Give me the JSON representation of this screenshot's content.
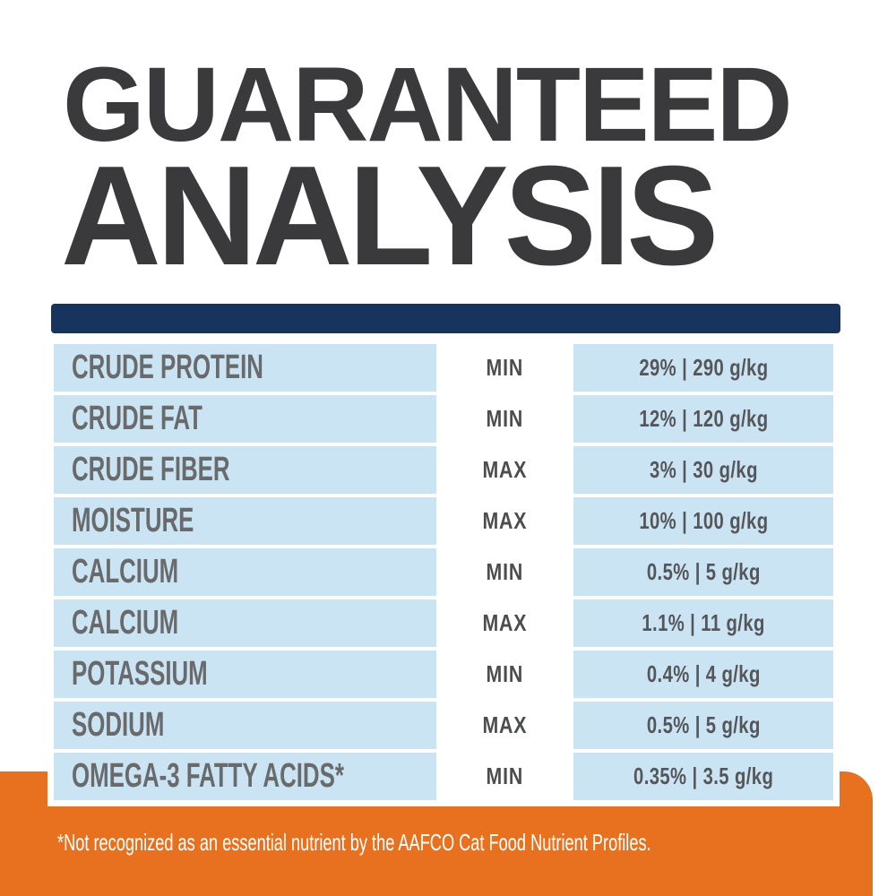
{
  "page": {
    "title_line1": "GUARANTEED",
    "title_line2": "ANALYSIS",
    "footnote": "*Not recognized as an essential nutrient by the AAFCO Cat Food Nutrient Profiles."
  },
  "colors": {
    "navy_bar": "#16345e",
    "cell_light_blue": "#cbe4f4",
    "footer_orange": "#e8711f",
    "title_text": "#3a3a3c",
    "nutrient_text": "#696a6c",
    "minmax_text": "#4c4d4f",
    "value_text": "#55565a",
    "footnote_text": "#ffffff"
  },
  "table": {
    "rows": [
      {
        "nutrient": "CRUDE PROTEIN",
        "qualifier": "MIN",
        "value": "29% | 290 g/kg"
      },
      {
        "nutrient": "CRUDE FAT",
        "qualifier": "MIN",
        "value": "12% | 120 g/kg"
      },
      {
        "nutrient": "CRUDE FIBER",
        "qualifier": "MAX",
        "value": "3% | 30 g/kg"
      },
      {
        "nutrient": "MOISTURE",
        "qualifier": "MAX",
        "value": "10% | 100 g/kg"
      },
      {
        "nutrient": "CALCIUM",
        "qualifier": "MIN",
        "value": "0.5% | 5 g/kg"
      },
      {
        "nutrient": "CALCIUM",
        "qualifier": "MAX",
        "value": "1.1% | 11 g/kg"
      },
      {
        "nutrient": "POTASSIUM",
        "qualifier": "MIN",
        "value": "0.4% | 4 g/kg"
      },
      {
        "nutrient": "SODIUM",
        "qualifier": "MAX",
        "value": "0.5% | 5 g/kg"
      },
      {
        "nutrient": "OMEGA-3 FATTY ACIDS*",
        "qualifier": "MIN",
        "value": "0.35% | 3.5 g/kg"
      }
    ]
  }
}
